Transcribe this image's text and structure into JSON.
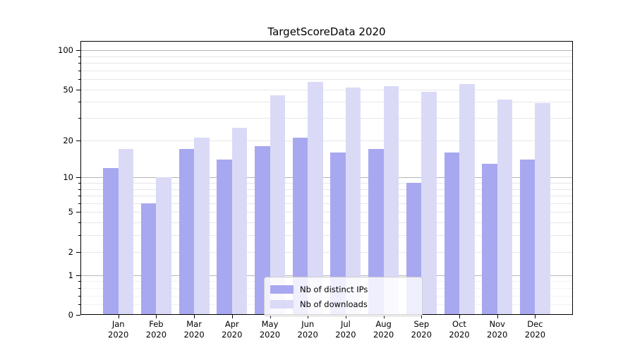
{
  "title": "TargetScoreData 2020",
  "chart_data": {
    "type": "bar",
    "title": "TargetScoreData 2020",
    "categories": [
      "Jan 2020",
      "Feb 2020",
      "Mar 2020",
      "Apr 2020",
      "May 2020",
      "Jun 2020",
      "Jul 2020",
      "Aug 2020",
      "Sep 2020",
      "Oct 2020",
      "Nov 2020",
      "Dec 2020"
    ],
    "x_months": [
      "Jan",
      "Feb",
      "Mar",
      "Apr",
      "May",
      "Jun",
      "Jul",
      "Aug",
      "Sep",
      "Oct",
      "Nov",
      "Dec"
    ],
    "x_year": "2020",
    "series": [
      {
        "name": "Nb of distinct IPs",
        "color": "#a8a8f0",
        "values": [
          12,
          6,
          17,
          14,
          18,
          21,
          16,
          17,
          9,
          16,
          13,
          14
        ]
      },
      {
        "name": "Nb of downloads",
        "color": "#dadaf7",
        "values": [
          17,
          10,
          21,
          25,
          45,
          57,
          52,
          53,
          48,
          55,
          42,
          39
        ]
      }
    ],
    "yscale": "log(1+y)",
    "ylim": [
      0,
      117
    ],
    "y_tick_values": [
      100,
      50,
      20,
      10,
      5,
      2,
      1,
      0
    ],
    "y_major_gridlines": [
      1,
      10,
      100
    ],
    "y_minor_gridlines": [
      0.2,
      0.4,
      0.6,
      0.8,
      2,
      3,
      4,
      5,
      6,
      7,
      8,
      9,
      20,
      30,
      40,
      50,
      60,
      70,
      80,
      90
    ],
    "grid": true,
    "legend": {
      "position": "lower center",
      "items": [
        "Nb of distinct IPs",
        "Nb of downloads"
      ]
    }
  },
  "colors": {
    "major_grid": "#b5b5b5",
    "minor_grid": "#e7e7e7",
    "faint_grid": "#f2f2f2",
    "spine": "#000000",
    "text": "#000000",
    "legend_border": "#cccccc"
  }
}
